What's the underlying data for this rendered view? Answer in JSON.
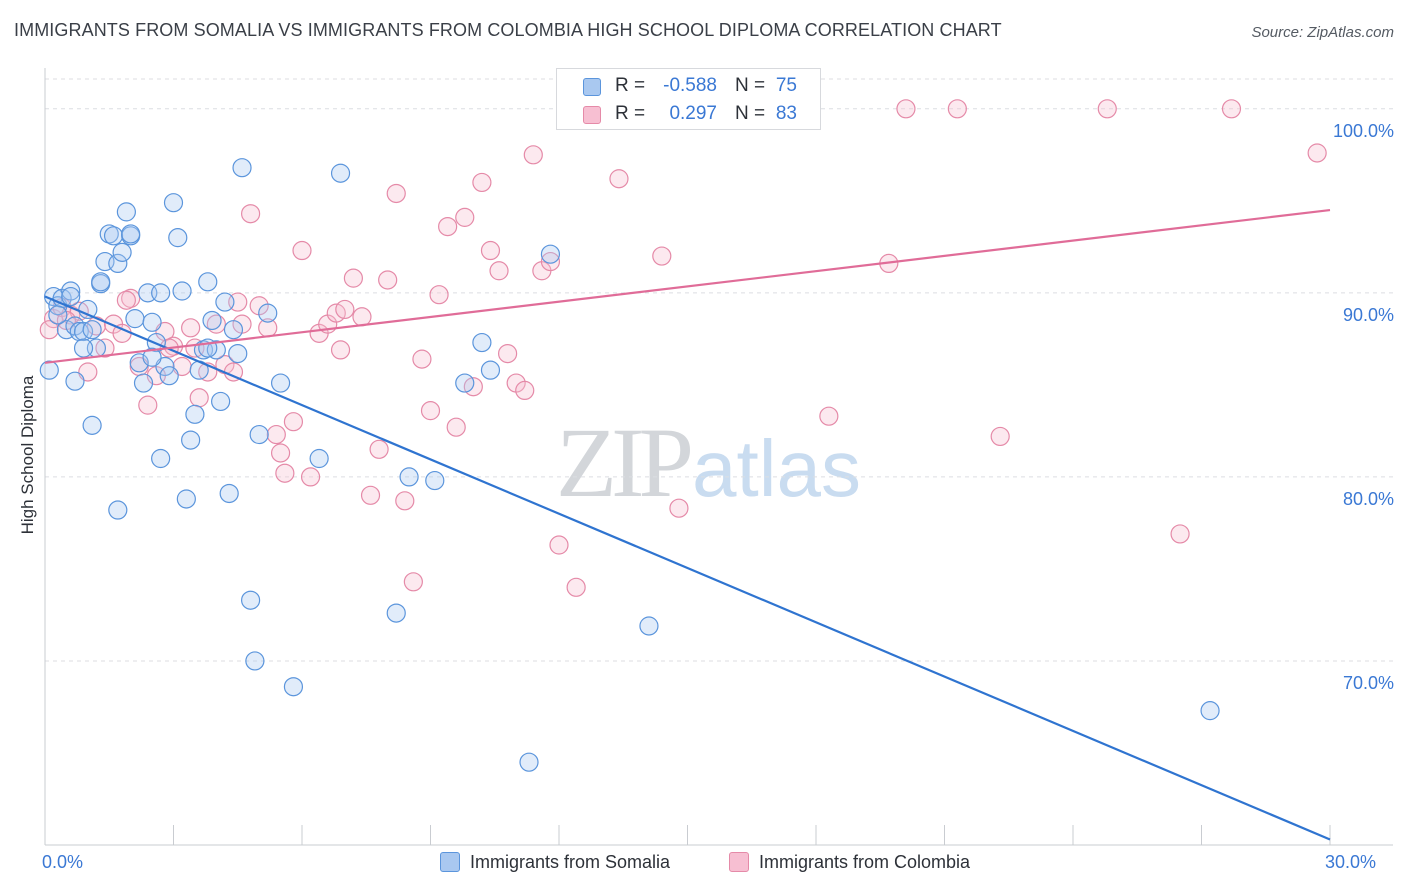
{
  "title": "IMMIGRANTS FROM SOMALIA VS IMMIGRANTS FROM COLOMBIA HIGH SCHOOL DIPLOMA CORRELATION CHART",
  "source": "Source: ZipAtlas.com",
  "watermark": {
    "zip": "ZIP",
    "atlas": "atlas"
  },
  "stats": {
    "rows": [
      {
        "r_label": "R =",
        "r_value": "-0.588",
        "n_label": "N =",
        "n_value": "75",
        "color": "#a9c8f0",
        "border": "#5b95dc"
      },
      {
        "r_label": "R =",
        "r_value": "0.297",
        "n_label": "N =",
        "n_value": "83",
        "color": "#f7bfd2",
        "border": "#e58aa8"
      }
    ]
  },
  "chart_data": {
    "type": "scatter",
    "ylabel": "High School Diploma",
    "xlim": [
      0.0,
      30.0
    ],
    "ylim": [
      60.0,
      102.0
    ],
    "x_tick_labels": [
      {
        "value": 0.0,
        "label": "0.0%"
      },
      {
        "value": 30.0,
        "label": "30.0%"
      }
    ],
    "y_ticks": [
      {
        "value": 100.0,
        "label": "100.0%"
      },
      {
        "value": 90.0,
        "label": "90.0%"
      },
      {
        "value": 80.0,
        "label": "80.0%"
      },
      {
        "value": 70.0,
        "label": "70.0%"
      }
    ],
    "grid": "horizontal dashed",
    "legend_position": "bottom-center",
    "series": [
      {
        "name": "Immigrants from Somalia",
        "color": "#5b95dc",
        "fill": "#a9c8f0",
        "trend": {
          "x": [
            0.0,
            30.0
          ],
          "y": [
            89.8,
            60.3
          ],
          "color": "#2f74d0"
        },
        "points": [
          [
            0.1,
            85.8
          ],
          [
            0.2,
            89.8
          ],
          [
            0.3,
            89.3
          ],
          [
            0.4,
            89.7
          ],
          [
            0.5,
            88.0
          ],
          [
            0.6,
            90.1
          ],
          [
            0.7,
            88.2
          ],
          [
            0.8,
            87.9
          ],
          [
            0.9,
            87.9
          ],
          [
            1.0,
            89.1
          ],
          [
            1.1,
            88.0
          ],
          [
            1.2,
            87.0
          ],
          [
            1.3,
            90.5
          ],
          [
            1.4,
            91.7
          ],
          [
            1.5,
            93.2
          ],
          [
            1.6,
            93.1
          ],
          [
            1.7,
            91.6
          ],
          [
            1.8,
            92.2
          ],
          [
            1.9,
            94.4
          ],
          [
            2.0,
            93.1
          ],
          [
            2.1,
            88.6
          ],
          [
            2.2,
            86.2
          ],
          [
            2.3,
            85.1
          ],
          [
            2.4,
            90.0
          ],
          [
            2.5,
            88.4
          ],
          [
            2.6,
            87.3
          ],
          [
            2.7,
            90.0
          ],
          [
            2.8,
            86.0
          ],
          [
            2.9,
            85.5
          ],
          [
            3.0,
            94.9
          ],
          [
            3.1,
            93.0
          ],
          [
            3.2,
            90.1
          ],
          [
            3.3,
            78.8
          ],
          [
            3.4,
            82.0
          ],
          [
            3.5,
            83.4
          ],
          [
            3.6,
            85.8
          ],
          [
            3.7,
            86.9
          ],
          [
            3.8,
            90.6
          ],
          [
            3.9,
            88.5
          ],
          [
            4.0,
            86.9
          ],
          [
            4.1,
            84.1
          ],
          [
            4.2,
            89.5
          ],
          [
            4.3,
            79.1
          ],
          [
            4.4,
            88.0
          ],
          [
            4.5,
            86.7
          ],
          [
            4.6,
            96.8
          ],
          [
            4.8,
            73.3
          ],
          [
            4.9,
            70.0
          ],
          [
            5.0,
            82.3
          ],
          [
            5.2,
            88.9
          ],
          [
            5.5,
            85.1
          ],
          [
            5.8,
            68.6
          ],
          [
            6.4,
            81.0
          ],
          [
            6.9,
            96.5
          ],
          [
            8.2,
            72.6
          ],
          [
            8.5,
            80.0
          ],
          [
            9.1,
            79.8
          ],
          [
            9.8,
            85.1
          ],
          [
            10.2,
            87.3
          ],
          [
            10.4,
            85.8
          ],
          [
            11.3,
            64.5
          ],
          [
            11.8,
            92.1
          ],
          [
            14.1,
            71.9
          ],
          [
            27.2,
            67.3
          ],
          [
            0.3,
            88.8
          ],
          [
            0.7,
            85.2
          ],
          [
            1.1,
            82.8
          ],
          [
            1.7,
            78.2
          ],
          [
            2.0,
            93.2
          ],
          [
            2.7,
            81.0
          ],
          [
            0.9,
            87.0
          ],
          [
            0.6,
            89.8
          ],
          [
            1.3,
            90.6
          ],
          [
            2.5,
            86.5
          ],
          [
            3.8,
            87.0
          ]
        ]
      },
      {
        "name": "Immigrants from Colombia",
        "color": "#e58aa8",
        "fill": "#f7bfd2",
        "trend": {
          "x": [
            0.0,
            30.0
          ],
          "y": [
            86.2,
            94.5
          ],
          "color": "#e06c98"
        },
        "points": [
          [
            0.2,
            88.6
          ],
          [
            0.4,
            89.2
          ],
          [
            0.6,
            88.8
          ],
          [
            0.8,
            89.0
          ],
          [
            1.0,
            85.7
          ],
          [
            1.2,
            88.2
          ],
          [
            1.4,
            87.0
          ],
          [
            1.6,
            88.3
          ],
          [
            1.8,
            87.8
          ],
          [
            2.0,
            89.7
          ],
          [
            2.2,
            86.0
          ],
          [
            2.4,
            83.9
          ],
          [
            2.6,
            85.5
          ],
          [
            2.8,
            87.9
          ],
          [
            3.0,
            87.1
          ],
          [
            3.2,
            86.0
          ],
          [
            3.4,
            88.1
          ],
          [
            3.6,
            84.3
          ],
          [
            3.8,
            85.7
          ],
          [
            4.0,
            88.3
          ],
          [
            4.2,
            86.1
          ],
          [
            4.4,
            85.7
          ],
          [
            4.6,
            88.3
          ],
          [
            4.8,
            94.3
          ],
          [
            5.0,
            89.3
          ],
          [
            5.2,
            88.1
          ],
          [
            5.4,
            82.3
          ],
          [
            5.6,
            80.2
          ],
          [
            5.8,
            83.0
          ],
          [
            6.0,
            92.3
          ],
          [
            6.2,
            80.0
          ],
          [
            6.4,
            87.8
          ],
          [
            6.6,
            88.3
          ],
          [
            6.8,
            88.9
          ],
          [
            7.0,
            89.1
          ],
          [
            7.2,
            90.8
          ],
          [
            7.4,
            88.7
          ],
          [
            7.6,
            79.0
          ],
          [
            7.8,
            81.5
          ],
          [
            8.0,
            90.7
          ],
          [
            8.2,
            95.4
          ],
          [
            8.4,
            78.7
          ],
          [
            8.6,
            74.3
          ],
          [
            8.8,
            86.4
          ],
          [
            9.0,
            83.6
          ],
          [
            9.2,
            89.9
          ],
          [
            9.4,
            93.6
          ],
          [
            9.6,
            82.7
          ],
          [
            9.8,
            94.1
          ],
          [
            10.0,
            84.9
          ],
          [
            10.2,
            96.0
          ],
          [
            10.4,
            92.3
          ],
          [
            10.6,
            91.2
          ],
          [
            10.8,
            86.7
          ],
          [
            11.0,
            85.1
          ],
          [
            11.2,
            84.7
          ],
          [
            11.4,
            97.5
          ],
          [
            11.6,
            91.2
          ],
          [
            11.8,
            91.7
          ],
          [
            12.0,
            76.3
          ],
          [
            12.4,
            74.0
          ],
          [
            13.4,
            96.2
          ],
          [
            14.4,
            92.0
          ],
          [
            14.8,
            78.3
          ],
          [
            15.4,
            100.0
          ],
          [
            16.5,
            100.0
          ],
          [
            18.3,
            83.3
          ],
          [
            19.7,
            91.6
          ],
          [
            20.1,
            100.0
          ],
          [
            21.3,
            100.0
          ],
          [
            22.3,
            82.2
          ],
          [
            24.8,
            100.0
          ],
          [
            26.5,
            76.9
          ],
          [
            27.7,
            100.0
          ],
          [
            29.7,
            97.6
          ],
          [
            0.1,
            88.0
          ],
          [
            0.5,
            88.5
          ],
          [
            1.9,
            89.6
          ],
          [
            2.9,
            87.0
          ],
          [
            3.5,
            87.0
          ],
          [
            4.5,
            89.5
          ],
          [
            5.5,
            81.3
          ],
          [
            6.9,
            86.9
          ]
        ]
      }
    ]
  }
}
